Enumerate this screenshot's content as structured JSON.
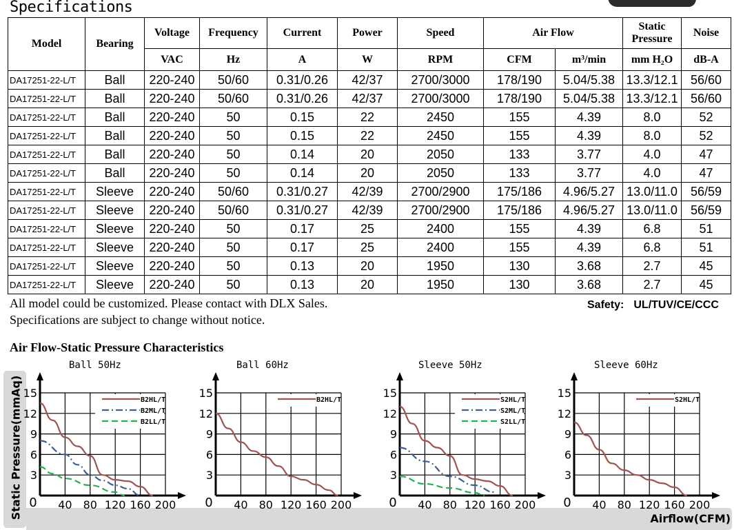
{
  "title": "Specifications",
  "table": {
    "headers_top": [
      "Model",
      "Bearing",
      "Voltage",
      "Frequency",
      "Current",
      "Power",
      "Speed",
      "Air Flow",
      "Static Pressure",
      "Noise"
    ],
    "units": [
      "VAC",
      "Hz",
      "A",
      "W",
      "RPM",
      "CFM",
      "m³/min",
      "mm H₂O",
      "dB-A"
    ],
    "rows": [
      [
        "DA17251-22-L/T",
        "Ball",
        "220-240",
        "50/60",
        "0.31/0.26",
        "42/37",
        "2700/3000",
        "178/190",
        "5.04/5.38",
        "13.3/12.1",
        "56/60"
      ],
      [
        "DA17251-22-L/T",
        "Ball",
        "220-240",
        "50/60",
        "0.31/0.26",
        "42/37",
        "2700/3000",
        "178/190",
        "5.04/5.38",
        "13.3/12.1",
        "56/60"
      ],
      [
        "DA17251-22-L/T",
        "Ball",
        "220-240",
        "50",
        "0.15",
        "22",
        "2450",
        "155",
        "4.39",
        "8.0",
        "52"
      ],
      [
        "DA17251-22-L/T",
        "Ball",
        "220-240",
        "50",
        "0.15",
        "22",
        "2450",
        "155",
        "4.39",
        "8.0",
        "52"
      ],
      [
        "DA17251-22-L/T",
        "Ball",
        "220-240",
        "50",
        "0.14",
        "20",
        "2050",
        "133",
        "3.77",
        "4.0",
        "47"
      ],
      [
        "DA17251-22-L/T",
        "Ball",
        "220-240",
        "50",
        "0.14",
        "20",
        "2050",
        "133",
        "3.77",
        "4.0",
        "47"
      ],
      [
        "DA17251-22-L/T",
        "Sleeve",
        "220-240",
        "50/60",
        "0.31/0.27",
        "42/39",
        "2700/2900",
        "175/186",
        "4.96/5.27",
        "13.0/11.0",
        "56/59"
      ],
      [
        "DA17251-22-L/T",
        "Sleeve",
        "220-240",
        "50/60",
        "0.31/0.27",
        "42/39",
        "2700/2900",
        "175/186",
        "4.96/5.27",
        "13.0/11.0",
        "56/59"
      ],
      [
        "DA17251-22-L/T",
        "Sleeve",
        "220-240",
        "50",
        "0.17",
        "25",
        "2400",
        "155",
        "4.39",
        "6.8",
        "51"
      ],
      [
        "DA17251-22-L/T",
        "Sleeve",
        "220-240",
        "50",
        "0.17",
        "25",
        "2400",
        "155",
        "4.39",
        "6.8",
        "51"
      ],
      [
        "DA17251-22-L/T",
        "Sleeve",
        "220-240",
        "50",
        "0.13",
        "20",
        "1950",
        "130",
        "3.68",
        "2.7",
        "45"
      ],
      [
        "DA17251-22-L/T",
        "Sleeve",
        "220-240",
        "50",
        "0.13",
        "20",
        "1950",
        "130",
        "3.68",
        "2.7",
        "45"
      ]
    ]
  },
  "notes": [
    "All model could be customized. Please contact with DLX Sales.",
    "Specifications are subject to change without notice."
  ],
  "safety": {
    "label": "Safety:",
    "value": "UL/TUV/CE/CCC"
  },
  "charts_title": "Air Flow-Static Pressure Characteristics",
  "ylabel": "Static Pressure(mmAq)",
  "xlabel": "Airflow(CFM)",
  "colors": {
    "high": "#a0524e",
    "medium": "#3a5f94",
    "low": "#22b14c"
  },
  "chart_data": [
    {
      "type": "line",
      "title": "Ball 50Hz",
      "xlim": [
        0,
        200
      ],
      "ylim": [
        0,
        15
      ],
      "xticks": [
        0,
        40,
        80,
        120,
        160,
        200
      ],
      "yticks": [
        3,
        6,
        9,
        12,
        15
      ],
      "grid": true,
      "legend": "top-right",
      "series": [
        {
          "name": "B2HL/T",
          "style": "solid",
          "x": [
            0,
            20,
            40,
            60,
            80,
            100,
            120,
            140,
            160,
            180
          ],
          "y": [
            13.5,
            11,
            8.5,
            7.2,
            5.8,
            3,
            2.3,
            2.1,
            1.3,
            0
          ]
        },
        {
          "name": "B2ML/T",
          "style": "dashdot",
          "x": [
            0,
            40,
            60,
            80,
            100,
            120,
            140,
            160
          ],
          "y": [
            8,
            6,
            4.5,
            3,
            2.2,
            1.5,
            1,
            0
          ]
        },
        {
          "name": "B2LL/T",
          "style": "dashed",
          "x": [
            0,
            20,
            40,
            80,
            120,
            135
          ],
          "y": [
            4.2,
            3.2,
            2.5,
            1.5,
            0.5,
            0
          ]
        }
      ]
    },
    {
      "type": "line",
      "title": "Ball 60Hz",
      "xlim": [
        0,
        200
      ],
      "ylim": [
        0,
        15
      ],
      "xticks": [
        0,
        40,
        80,
        120,
        160,
        200
      ],
      "yticks": [
        3,
        6,
        9,
        12,
        15
      ],
      "grid": true,
      "legend": "top-right",
      "series": [
        {
          "name": "B2HL/T",
          "style": "solid",
          "x": [
            0,
            20,
            40,
            60,
            80,
            100,
            120,
            140,
            160,
            180,
            195
          ],
          "y": [
            12,
            9.8,
            7.8,
            6.5,
            5.6,
            4.3,
            2.8,
            2.3,
            1.6,
            0.8,
            0
          ]
        }
      ]
    },
    {
      "type": "line",
      "title": "Sleeve 50Hz",
      "xlim": [
        0,
        200
      ],
      "ylim": [
        0,
        15
      ],
      "xticks": [
        0,
        40,
        80,
        120,
        160,
        200
      ],
      "yticks": [
        3,
        6,
        9,
        12,
        15
      ],
      "grid": true,
      "legend": "top-right",
      "series": [
        {
          "name": "S2HL/T",
          "style": "solid",
          "x": [
            0,
            20,
            40,
            60,
            80,
            100,
            120,
            140,
            160,
            180
          ],
          "y": [
            13,
            10.5,
            8,
            7,
            5.8,
            3,
            2.4,
            2.1,
            1.4,
            0
          ]
        },
        {
          "name": "S2ML/T",
          "style": "dashdot",
          "x": [
            0,
            40,
            80,
            120,
            150
          ],
          "y": [
            7,
            5,
            2.8,
            1.5,
            0.5
          ]
        },
        {
          "name": "S2LL/T",
          "style": "dashed",
          "x": [
            0,
            40,
            80,
            120,
            135
          ],
          "y": [
            2.8,
            1.7,
            1.1,
            0.4,
            0
          ]
        }
      ]
    },
    {
      "type": "line",
      "title": "Sleeve 60Hz",
      "xlim": [
        0,
        200
      ],
      "ylim": [
        0,
        15
      ],
      "xticks": [
        0,
        40,
        80,
        120,
        160,
        200
      ],
      "yticks": [
        3,
        6,
        9,
        12,
        15
      ],
      "grid": true,
      "legend": "top-right",
      "series": [
        {
          "name": "S2HL/T",
          "style": "solid",
          "x": [
            0,
            20,
            40,
            60,
            80,
            100,
            120,
            140,
            160,
            180
          ],
          "y": [
            10.7,
            8.8,
            6.7,
            4.7,
            3.7,
            3,
            2.3,
            1.8,
            1.2,
            0
          ]
        }
      ]
    }
  ]
}
